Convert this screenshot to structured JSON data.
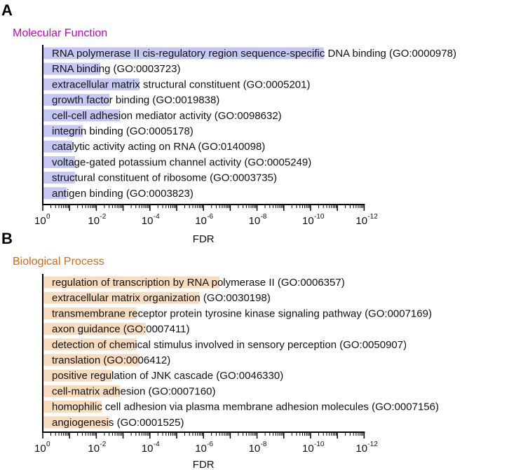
{
  "chart_data": [
    {
      "panel": "A",
      "type": "bar",
      "orientation": "horizontal",
      "title": "Molecular Function",
      "title_color": "#cc00cc",
      "bar_color": "#c4c8f2",
      "xlabel": "FDR",
      "x_scale": "log10-reversed",
      "xlim": [
        1,
        1e-12
      ],
      "x_ticks": [
        {
          "base": "10",
          "exp": "0"
        },
        {
          "base": "10",
          "exp": "-2"
        },
        {
          "base": "10",
          "exp": "-4"
        },
        {
          "base": "10",
          "exp": "-6"
        },
        {
          "base": "10",
          "exp": "-8"
        },
        {
          "base": "10",
          "exp": "-10"
        },
        {
          "base": "10",
          "exp": "-12"
        }
      ],
      "categories": [
        "RNA polymerase II cis-regulatory region sequence-specific DNA binding (GO:0000978)",
        "RNA binding (GO:0003723)",
        "extracellular matrix structural constituent (GO:0005201)",
        "growth factor binding (GO:0019838)",
        "cell-cell adhesion mediator activity (GO:0098632)",
        "integrin binding (GO:0005178)",
        "catalytic activity acting on RNA (GO:0140098)",
        "voltage-gated potassium channel activity (GO:0005249)",
        "structural constituent of ribosome (GO:0003735)",
        "antigen binding (GO:0003823)"
      ],
      "values": [
        3.2e-11,
        0.0071,
        0.00025,
        0.0032,
        0.0013,
        0.032,
        0.079,
        0.063,
        0.063,
        0.13
      ]
    },
    {
      "panel": "B",
      "type": "bar",
      "orientation": "horizontal",
      "title": "Biological Process",
      "title_color": "#d2691e",
      "bar_color": "#f8dcbf",
      "xlabel": "FDR",
      "x_scale": "log10-reversed",
      "xlim": [
        1,
        1e-12
      ],
      "x_ticks": [
        {
          "base": "10",
          "exp": "0"
        },
        {
          "base": "10",
          "exp": "-2"
        },
        {
          "base": "10",
          "exp": "-4"
        },
        {
          "base": "10",
          "exp": "-6"
        },
        {
          "base": "10",
          "exp": "-8"
        },
        {
          "base": "10",
          "exp": "-10"
        },
        {
          "base": "10",
          "exp": "-12"
        }
      ],
      "categories": [
        "regulation of transcription by RNA polymerase II (GO:0006357)",
        "extracellular matrix organization (GO:0030198)",
        "transmembrane receptor protein tyrosine kinase signaling pathway (GO:0007169)",
        "axon guidance (GO:0007411)",
        "detection of chemical stimulus involved in sensory perception (GO:0050907)",
        "translation (GO:0006412)",
        "positive regulation of JNK cascade (GO:0046330)",
        "cell-matrix adhesion (GO:0007160)",
        "homophilic cell adhesion via plasma membrane adhesion molecules (GO:0007156)",
        "angiogenesis (GO:0001525)"
      ],
      "values": [
        2.5e-07,
        1.4e-06,
        0.00032,
        0.00014,
        0.00032,
        0.00025,
        0.0025,
        0.0013,
        0.0063,
        0.0032
      ]
    }
  ],
  "panel_labels": [
    "A",
    "B"
  ]
}
